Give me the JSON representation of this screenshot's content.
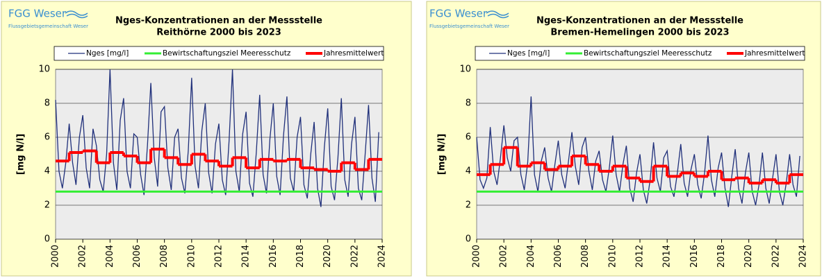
{
  "logo": {
    "name": "FGG Weser",
    "subtitle": "Flussgebietsgemeinschaft Weser"
  },
  "chart_data": [
    {
      "type": "line",
      "title": "Nges-Konzentrationen an der Messstelle",
      "subtitle": "Reithörne 2000 bis 2023",
      "ylabel": "[mg N/l]",
      "xlim": [
        2000,
        2024
      ],
      "xticks": [
        2000,
        2002,
        2004,
        2006,
        2008,
        2010,
        2012,
        2014,
        2016,
        2018,
        2020,
        2022,
        2024
      ],
      "ylim": [
        0,
        10
      ],
      "yticks": [
        0,
        2,
        4,
        6,
        8,
        10
      ],
      "grid": true,
      "series": [
        {
          "name": "Nges [mg/l]",
          "color": "#1f2f7a",
          "style": "line",
          "x": [
            2000,
            2000.25,
            2000.5,
            2000.75,
            2001,
            2001.25,
            2001.5,
            2001.75,
            2002,
            2002.25,
            2002.5,
            2002.75,
            2003,
            2003.25,
            2003.5,
            2003.75,
            2004,
            2004.25,
            2004.5,
            2004.75,
            2005,
            2005.25,
            2005.5,
            2005.75,
            2006,
            2006.25,
            2006.5,
            2006.75,
            2007,
            2007.25,
            2007.5,
            2007.75,
            2008,
            2008.25,
            2008.5,
            2008.75,
            2009,
            2009.25,
            2009.5,
            2009.75,
            2010,
            2010.25,
            2010.5,
            2010.75,
            2011,
            2011.25,
            2011.5,
            2011.75,
            2012,
            2012.25,
            2012.5,
            2012.75,
            2013,
            2013.25,
            2013.5,
            2013.75,
            2014,
            2014.25,
            2014.5,
            2014.75,
            2015,
            2015.25,
            2015.5,
            2015.75,
            2016,
            2016.25,
            2016.5,
            2016.75,
            2017,
            2017.25,
            2017.5,
            2017.75,
            2018,
            2018.25,
            2018.5,
            2018.75,
            2019,
            2019.25,
            2019.5,
            2019.75,
            2020,
            2020.25,
            2020.5,
            2020.75,
            2021,
            2021.25,
            2021.5,
            2021.75,
            2022,
            2022.25,
            2022.5,
            2022.75,
            2023,
            2023.25,
            2023.5,
            2023.75
          ],
          "values": [
            8.2,
            4.0,
            3.0,
            4.5,
            6.8,
            4.5,
            3.2,
            6.0,
            7.3,
            4.2,
            3.0,
            6.5,
            5.5,
            3.5,
            2.8,
            5.0,
            10,
            4.5,
            2.9,
            7.0,
            8.3,
            4.0,
            3.0,
            6.2,
            6.0,
            3.8,
            2.6,
            5.5,
            9.2,
            4.8,
            3.1,
            7.5,
            7.8,
            4.2,
            2.9,
            6.0,
            6.5,
            3.6,
            2.7,
            5.2,
            9.5,
            4.3,
            3.0,
            6.4,
            8.0,
            3.9,
            2.7,
            5.6,
            6.8,
            3.5,
            2.6,
            5.8,
            10,
            4.0,
            2.8,
            6.2,
            7.5,
            3.3,
            2.5,
            5.1,
            8.5,
            3.8,
            2.7,
            5.9,
            8.0,
            3.7,
            2.6,
            6.1,
            8.4,
            3.6,
            2.8,
            6.0,
            7.2,
            3.2,
            2.4,
            5.0,
            6.9,
            3.0,
            1.9,
            5.4,
            7.7,
            3.1,
            2.3,
            4.8,
            8.3,
            3.5,
            2.5,
            5.6,
            7.2,
            3.0,
            2.3,
            5.0,
            7.9,
            3.6,
            2.2,
            6.3
          ]
        },
        {
          "name": "Bewirtschaftungsziel Meeresschutz",
          "color": "#33ee33",
          "style": "line",
          "x": [
            2000,
            2024
          ],
          "values": [
            2.8,
            2.8
          ]
        },
        {
          "name": "Jahresmittelwert",
          "color": "#ff0000",
          "style": "step",
          "x": [
            2000,
            2001,
            2002,
            2003,
            2004,
            2005,
            2006,
            2007,
            2008,
            2009,
            2010,
            2011,
            2012,
            2013,
            2014,
            2015,
            2016,
            2017,
            2018,
            2019,
            2020,
            2021,
            2022,
            2023
          ],
          "values": [
            4.6,
            5.1,
            5.2,
            4.5,
            5.1,
            4.9,
            4.5,
            5.3,
            4.8,
            4.4,
            5.0,
            4.6,
            4.3,
            4.8,
            4.2,
            4.7,
            4.6,
            4.7,
            4.2,
            4.1,
            4.0,
            4.5,
            4.1,
            4.7
          ]
        }
      ]
    },
    {
      "type": "line",
      "title": "Nges-Konzentrationen an der Messstelle",
      "subtitle": "Bremen-Hemelingen  2000 bis 2023",
      "ylabel": "[mg N/l]",
      "xlim": [
        2000,
        2024
      ],
      "xticks": [
        2000,
        2002,
        2004,
        2006,
        2008,
        2010,
        2012,
        2014,
        2016,
        2018,
        2020,
        2022,
        2024
      ],
      "ylim": [
        0,
        10
      ],
      "yticks": [
        0,
        2,
        4,
        6,
        8,
        10
      ],
      "grid": true,
      "series": [
        {
          "name": "Nges [mg/l]",
          "color": "#1f2f7a",
          "style": "line",
          "x": [
            2000,
            2000.25,
            2000.5,
            2000.75,
            2001,
            2001.25,
            2001.5,
            2001.75,
            2002,
            2002.25,
            2002.5,
            2002.75,
            2003,
            2003.25,
            2003.5,
            2003.75,
            2004,
            2004.25,
            2004.5,
            2004.75,
            2005,
            2005.25,
            2005.5,
            2005.75,
            2006,
            2006.25,
            2006.5,
            2006.75,
            2007,
            2007.25,
            2007.5,
            2007.75,
            2008,
            2008.25,
            2008.5,
            2008.75,
            2009,
            2009.25,
            2009.5,
            2009.75,
            2010,
            2010.25,
            2010.5,
            2010.75,
            2011,
            2011.25,
            2011.5,
            2011.75,
            2012,
            2012.25,
            2012.5,
            2012.75,
            2013,
            2013.25,
            2013.5,
            2013.75,
            2014,
            2014.25,
            2014.5,
            2014.75,
            2015,
            2015.25,
            2015.5,
            2015.75,
            2016,
            2016.25,
            2016.5,
            2016.75,
            2017,
            2017.25,
            2017.5,
            2017.75,
            2018,
            2018.25,
            2018.5,
            2018.75,
            2019,
            2019.25,
            2019.5,
            2019.75,
            2020,
            2020.25,
            2020.5,
            2020.75,
            2021,
            2021.25,
            2021.5,
            2021.75,
            2022,
            2022.25,
            2022.5,
            2022.75,
            2023,
            2023.25,
            2023.5,
            2023.75
          ],
          "values": [
            6.0,
            3.5,
            3.0,
            3.6,
            6.6,
            4.0,
            3.2,
            4.8,
            6.7,
            4.8,
            4.0,
            5.8,
            6.0,
            3.8,
            2.9,
            4.5,
            8.4,
            3.8,
            2.8,
            4.6,
            5.4,
            3.6,
            2.8,
            4.4,
            5.8,
            3.8,
            3.0,
            4.6,
            6.3,
            4.3,
            3.2,
            5.4,
            6.0,
            4.0,
            2.9,
            4.6,
            5.2,
            3.5,
            2.8,
            4.2,
            6.1,
            3.8,
            2.8,
            4.4,
            5.5,
            3.0,
            2.2,
            3.9,
            5.0,
            2.9,
            2.1,
            3.5,
            5.7,
            3.6,
            2.8,
            4.8,
            5.2,
            3.1,
            2.5,
            3.9,
            5.6,
            3.3,
            2.5,
            4.1,
            5.0,
            3.2,
            2.4,
            3.9,
            6.1,
            3.5,
            2.5,
            4.2,
            5.1,
            3.0,
            1.9,
            3.7,
            5.3,
            3.0,
            2.1,
            3.9,
            5.1,
            2.8,
            2.0,
            3.2,
            5.1,
            3.0,
            2.1,
            3.6,
            5.0,
            2.8,
            2.0,
            3.3,
            5.0,
            3.2,
            2.5,
            4.9
          ]
        },
        {
          "name": "Bewirtschaftungsziel Meeresschutz",
          "color": "#33ee33",
          "style": "line",
          "x": [
            2000,
            2024
          ],
          "values": [
            2.8,
            2.8
          ]
        },
        {
          "name": "Jahresmittelwert",
          "color": "#ff0000",
          "style": "step",
          "x": [
            2000,
            2001,
            2002,
            2003,
            2004,
            2005,
            2006,
            2007,
            2008,
            2009,
            2010,
            2011,
            2012,
            2013,
            2014,
            2015,
            2016,
            2017,
            2018,
            2019,
            2020,
            2021,
            2022,
            2023
          ],
          "values": [
            3.8,
            4.4,
            5.4,
            4.3,
            4.5,
            4.1,
            4.3,
            4.9,
            4.4,
            4.0,
            4.3,
            3.6,
            3.4,
            4.3,
            3.7,
            3.9,
            3.7,
            4.0,
            3.5,
            3.6,
            3.3,
            3.5,
            3.3,
            3.8
          ]
        }
      ]
    }
  ]
}
